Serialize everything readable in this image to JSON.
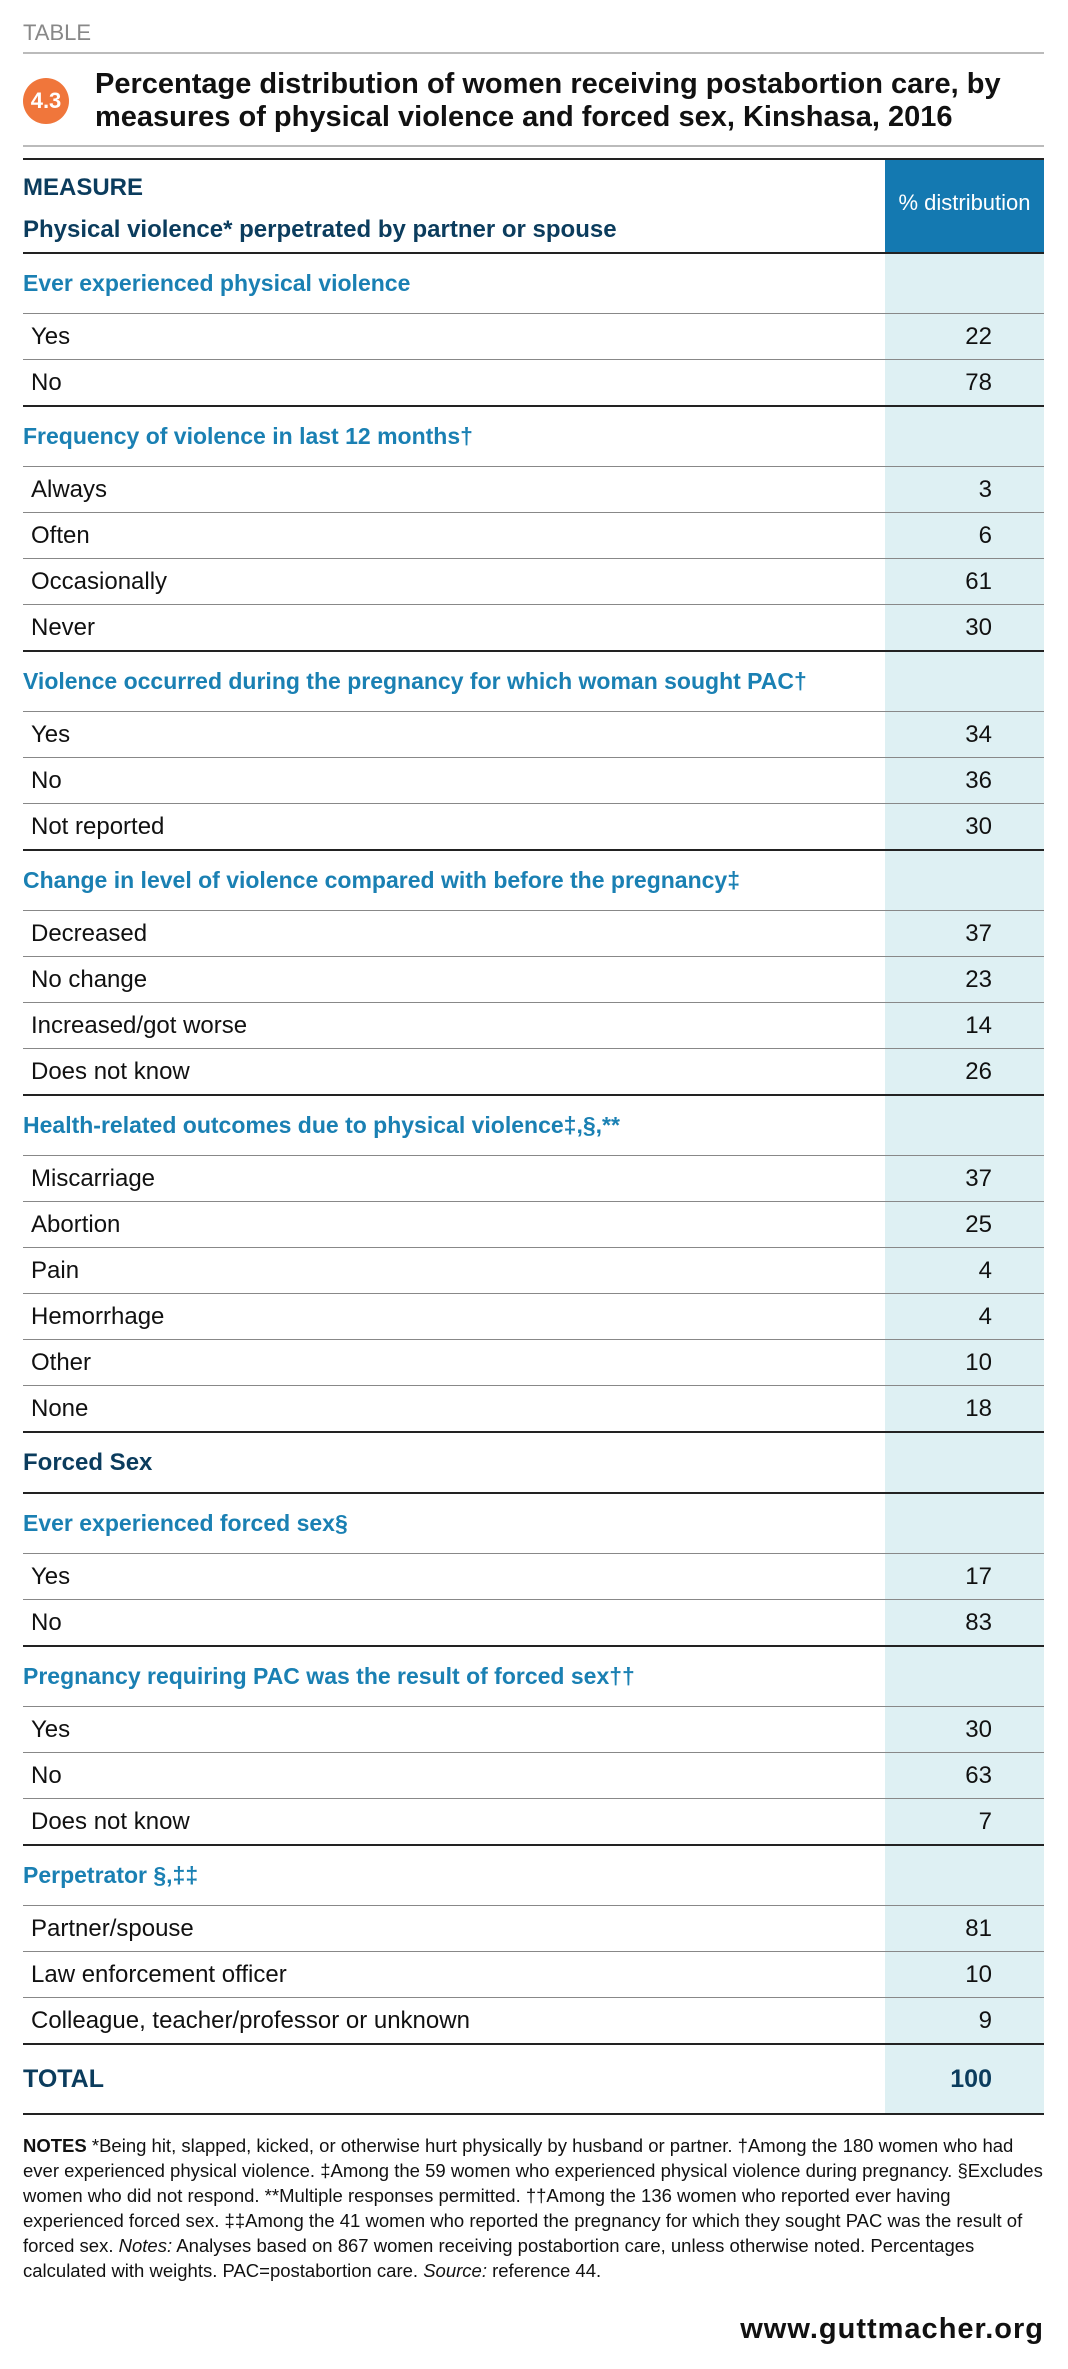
{
  "header": {
    "label": "TABLE",
    "number": "4.3",
    "title": "Percentage distribution of women receiving postabortion care, by measures of physical violence and forced sex, Kinshasa, 2016"
  },
  "table": {
    "measure_header": "MEASURE",
    "value_header": "% distribution",
    "groups": [
      {
        "title": "Physical violence* perpetrated by partner or spouse",
        "sections": [
          {
            "title": "Ever experienced physical violence",
            "rows": [
              {
                "label": "Yes",
                "value": 22
              },
              {
                "label": "No",
                "value": 78
              }
            ]
          },
          {
            "title": "Frequency of violence in last 12 months†",
            "rows": [
              {
                "label": "Always",
                "value": 3
              },
              {
                "label": "Often",
                "value": 6
              },
              {
                "label": "Occasionally",
                "value": 61
              },
              {
                "label": "Never",
                "value": 30
              }
            ]
          },
          {
            "title": "Violence occurred during the pregnancy for which woman sought PAC†",
            "rows": [
              {
                "label": "Yes",
                "value": 34
              },
              {
                "label": "No",
                "value": 36
              },
              {
                "label": "Not reported",
                "value": 30
              }
            ]
          },
          {
            "title": "Change in level of violence compared with before the pregnancy‡",
            "rows": [
              {
                "label": "Decreased",
                "value": 37
              },
              {
                "label": "No change",
                "value": 23
              },
              {
                "label": "Increased/got worse",
                "value": 14
              },
              {
                "label": "Does not know",
                "value": 26
              }
            ]
          },
          {
            "title": "Health-related outcomes due to physical violence‡,§,**",
            "rows": [
              {
                "label": "Miscarriage",
                "value": 37
              },
              {
                "label": "Abortion",
                "value": 25
              },
              {
                "label": "Pain",
                "value": 4
              },
              {
                "label": "Hemorrhage",
                "value": 4
              },
              {
                "label": "Other",
                "value": 10
              },
              {
                "label": "None",
                "value": 18
              }
            ]
          }
        ]
      },
      {
        "title": "Forced Sex",
        "sections": [
          {
            "title": "Ever experienced forced sex§",
            "rows": [
              {
                "label": "Yes",
                "value": 17
              },
              {
                "label": "No",
                "value": 83
              }
            ]
          },
          {
            "title": "Pregnancy requiring PAC was the result of forced sex††",
            "rows": [
              {
                "label": "Yes",
                "value": 30
              },
              {
                "label": "No",
                "value": 63
              },
              {
                "label": "Does not know",
                "value": 7
              }
            ]
          },
          {
            "title": "Perpetrator §,‡‡",
            "rows": [
              {
                "label": "Partner/spouse",
                "value": 81
              },
              {
                "label": "Law enforcement officer",
                "value": 10
              },
              {
                "label": "Colleague, teacher/professor or unknown",
                "value": 9
              }
            ]
          }
        ]
      }
    ],
    "total": {
      "label": "TOTAL",
      "value": 100
    }
  },
  "notes": {
    "label": "NOTES",
    "text": "*Being hit, slapped, kicked, or otherwise hurt physically by husband or partner. †Among the 180 women who had ever experienced physical violence. ‡Among the 59 women who experienced physical violence during pregnancy. §Excludes women who did not respond. **Multiple responses permitted. ††Among the 136 women who reported ever having experienced forced sex. ‡‡Among the 41 women who reported the pregnancy for which they sought PAC was the result of forced sex.",
    "notes_label": "Notes:",
    "notes_text": "Analyses based on 867 women receiving postabortion care, unless otherwise noted. Percentages calculated with weights. PAC=postabortion care.",
    "source_label": "Source:",
    "source_text": "reference 44."
  },
  "footer": {
    "url": "www.guttmacher.org"
  }
}
